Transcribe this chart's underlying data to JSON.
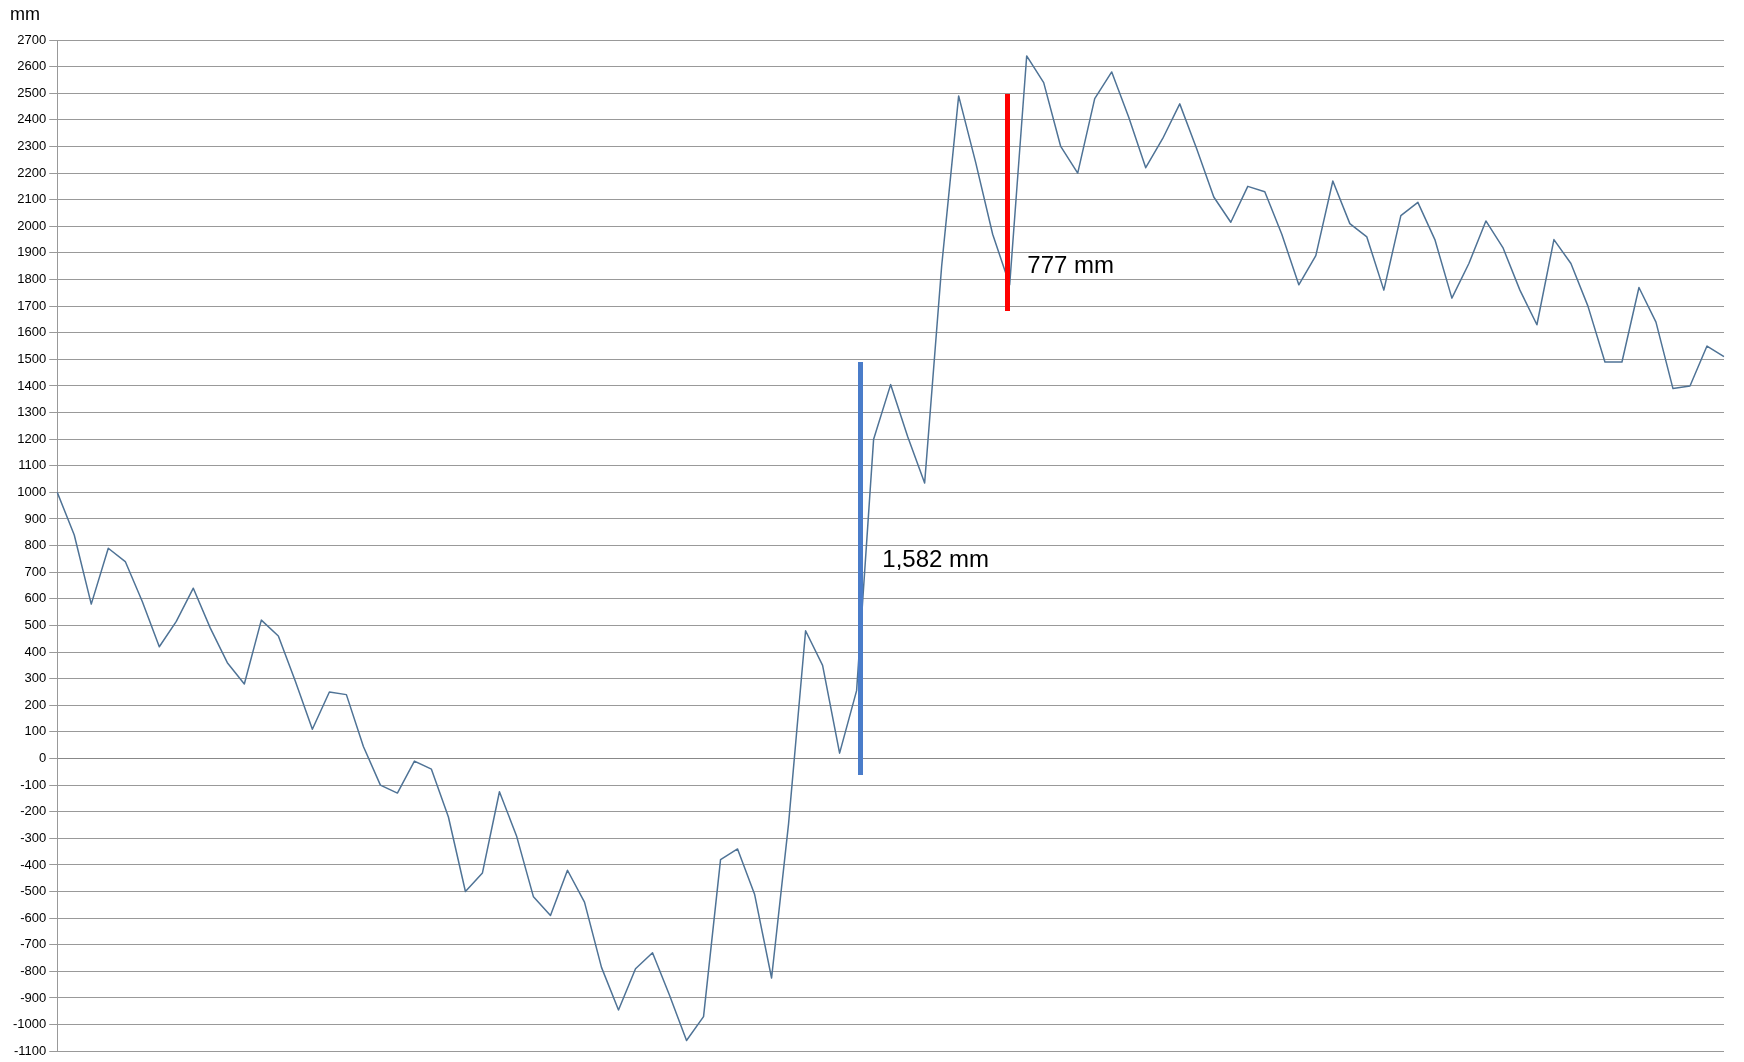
{
  "chart_data": {
    "type": "line",
    "ylabel": "mm",
    "categories": [
      null,
      null,
      null,
      null,
      null,
      null,
      null,
      null,
      null,
      null,
      null,
      null,
      null,
      null,
      null,
      null,
      null,
      null,
      null,
      null,
      null,
      null,
      null,
      null,
      null,
      null,
      null,
      null,
      null,
      null,
      null,
      null,
      null,
      null,
      null,
      null,
      null,
      null,
      null,
      null,
      null,
      null,
      null,
      null,
      null,
      null,
      null,
      null,
      null,
      null,
      null,
      null,
      null,
      null,
      null,
      null,
      null,
      null,
      null,
      null,
      null,
      null,
      null,
      null,
      null,
      null,
      null,
      null,
      null,
      null,
      null,
      null,
      null,
      null,
      null,
      null,
      null,
      null,
      null,
      null,
      null,
      null,
      null,
      null,
      null,
      null,
      null,
      null,
      null,
      null,
      null,
      null,
      null,
      null,
      null,
      null,
      null,
      null,
      null
    ],
    "ylim": [
      -1100,
      2700
    ],
    "yticks": [
      -1100,
      -1000,
      -900,
      -800,
      -700,
      -600,
      -500,
      -400,
      -300,
      -200,
      -100,
      0,
      100,
      200,
      300,
      400,
      500,
      600,
      700,
      800,
      900,
      1000,
      1100,
      1200,
      1300,
      1400,
      1500,
      1600,
      1700,
      1800,
      1900,
      2000,
      2100,
      2200,
      2300,
      2400,
      2500,
      2600,
      2700
    ],
    "tick_labels": "y",
    "grid": "y",
    "marker": "none",
    "line_style": "solid",
    "series": [
      {
        "color": "#4f7396",
        "values": [
          1000,
          840,
          580,
          790,
          740,
          590,
          420,
          515,
          640,
          490,
          360,
          280,
          520,
          460,
          290,
          110,
          250,
          240,
          45,
          -100,
          -130,
          -10,
          -40,
          -220,
          -500,
          -430,
          -125,
          -290,
          -520,
          -590,
          -420,
          -540,
          -785,
          -945,
          -790,
          -730,
          -890,
          -1060,
          -970,
          -380,
          -340,
          -510,
          -825,
          -245,
          480,
          350,
          20,
          255,
          1200,
          1405,
          1210,
          1035,
          1850,
          2490,
          2240,
          1970,
          1780,
          2640,
          2540,
          2300,
          2200,
          2480,
          2580,
          2410,
          2220,
          2330,
          2460,
          2290,
          2110,
          2015,
          2150,
          2130,
          1970,
          1780,
          1890,
          2170,
          2010,
          1960,
          1760,
          2040,
          2090,
          1950,
          1730,
          1860,
          2020,
          1920,
          1760,
          1630,
          1950,
          1860,
          1700,
          1490,
          1490,
          1770,
          1640,
          1390,
          1400,
          1550,
          1510
        ]
      }
    ],
    "annotations": [
      "1,582 mm",
      "777 mm"
    ]
  }
}
